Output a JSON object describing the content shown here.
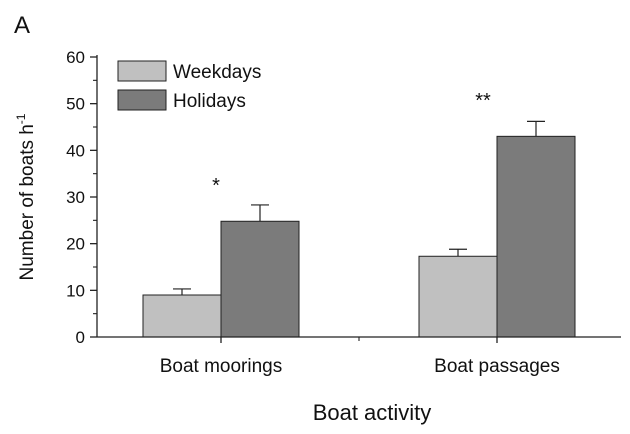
{
  "panel_label": "A",
  "chart_data": {
    "type": "bar",
    "title": "",
    "xlabel": "Boat activity",
    "ylabel": "Number of boats h",
    "ylabel_superscript": "-1",
    "categories": [
      "Boat moorings",
      "Boat passages"
    ],
    "ylim": [
      0,
      60
    ],
    "yticks": [
      0,
      10,
      20,
      30,
      40,
      50,
      60
    ],
    "grid": false,
    "legend_position": "top-left",
    "series": [
      {
        "name": "Weekdays",
        "values": [
          9,
          17.3
        ],
        "errors": [
          1.3,
          1.5
        ],
        "color": "#c0c0c0"
      },
      {
        "name": "Holidays",
        "values": [
          24.8,
          43
        ],
        "errors": [
          3.5,
          3.2
        ],
        "color": "#7b7b7b"
      }
    ],
    "annotations": [
      "*",
      "**"
    ]
  }
}
